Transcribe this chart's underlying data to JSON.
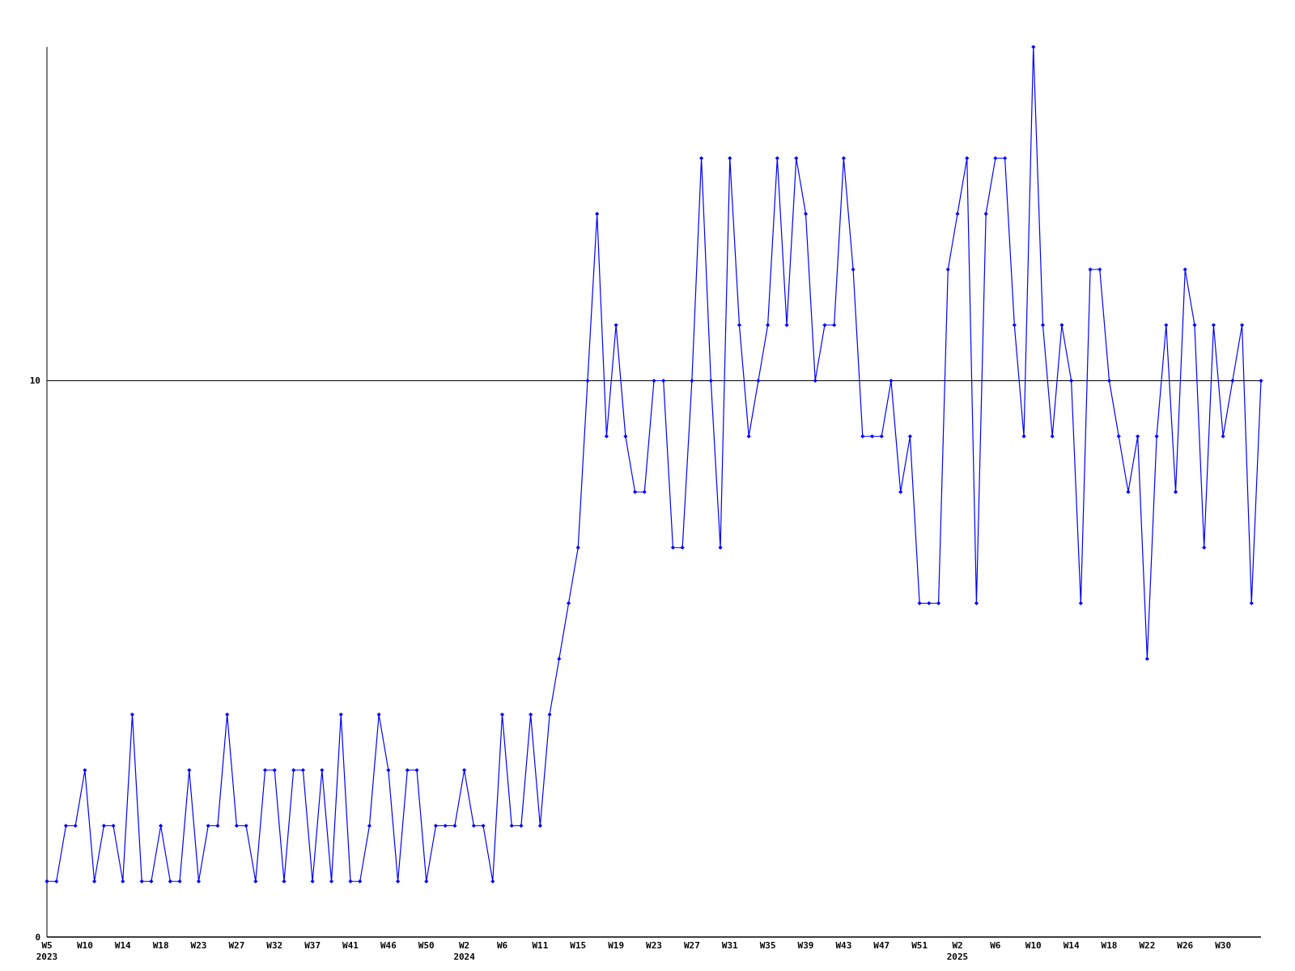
{
  "chart_data": {
    "type": "line",
    "categories": [
      "W5\n2023",
      null,
      null,
      null,
      "W10",
      null,
      null,
      null,
      "W14",
      null,
      null,
      null,
      "W18",
      null,
      null,
      null,
      "W23",
      null,
      null,
      null,
      "W27",
      null,
      null,
      null,
      "W32",
      null,
      null,
      null,
      "W37",
      null,
      null,
      null,
      "W41",
      null,
      null,
      null,
      "W46",
      null,
      null,
      null,
      "W50",
      null,
      null,
      null,
      "W2\n2024",
      null,
      null,
      null,
      "W6",
      null,
      null,
      null,
      "W11",
      null,
      null,
      null,
      "W15",
      null,
      null,
      null,
      "W19",
      null,
      null,
      null,
      "W23",
      null,
      null,
      null,
      "W27",
      null,
      null,
      null,
      "W31",
      null,
      null,
      null,
      "W35",
      null,
      null,
      null,
      "W39",
      null,
      null,
      null,
      "W43",
      null,
      null,
      null,
      "W47",
      null,
      null,
      null,
      "W51",
      null,
      null,
      null,
      "W2\n2025",
      null,
      null,
      null,
      "W6",
      null,
      null,
      null,
      "W10",
      null,
      null,
      null,
      "W14",
      null,
      null,
      null,
      "W18",
      null,
      null,
      null,
      "W22",
      null,
      null,
      null,
      "W26",
      null,
      null,
      null,
      "W30",
      null,
      null,
      null,
      null
    ],
    "series": [
      {
        "color": "#0000ff",
        "values": [
          1,
          1,
          2,
          2,
          3,
          1,
          2,
          2,
          1,
          4,
          1,
          1,
          2,
          1,
          1,
          3,
          1,
          2,
          2,
          4,
          2,
          2,
          1,
          3,
          3,
          1,
          3,
          3,
          1,
          3,
          1,
          4,
          1,
          1,
          2,
          4,
          3,
          1,
          3,
          3,
          1,
          2,
          2,
          2,
          3,
          2,
          2,
          1,
          4,
          2,
          2,
          4,
          2,
          4,
          5,
          6,
          7,
          10,
          13,
          9,
          11,
          9,
          8,
          8,
          10,
          10,
          7,
          7,
          10,
          14,
          10,
          7,
          14,
          11,
          9,
          10,
          11,
          14,
          11,
          14,
          13,
          10,
          11,
          11,
          14,
          12,
          9,
          9,
          9,
          10,
          8,
          9,
          6,
          6,
          6,
          12,
          13,
          14,
          6,
          13,
          14,
          14,
          11,
          9,
          16,
          11,
          9,
          11,
          10,
          6,
          12,
          12,
          10,
          9,
          8,
          9,
          5,
          9,
          11,
          8,
          12,
          11,
          7,
          11,
          9,
          10,
          11,
          6,
          10
        ]
      }
    ],
    "ylim": [
      0,
      16
    ],
    "yticks": [
      0,
      10
    ],
    "grid": "y",
    "marker": "diamond",
    "line_style": "solid"
  }
}
